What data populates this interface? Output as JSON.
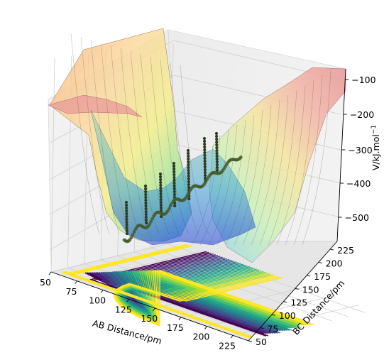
{
  "chart_data": {
    "type": "surface3d",
    "title": "",
    "xlabel": "AB Distance/pm",
    "ylabel": "BC Distance/pm",
    "zlabel": "V/kJ.mol",
    "zlabel_exponent": "−1",
    "xticks": [
      "50",
      "75",
      "100",
      "125",
      "150",
      "175",
      "200",
      "225"
    ],
    "yticks": [
      "50",
      "75",
      "100",
      "125",
      "150",
      "175",
      "200",
      "225"
    ],
    "zticks": [
      "−100",
      "−200",
      "−300",
      "−400",
      "−500"
    ],
    "xlim": [
      50,
      240
    ],
    "ylim": [
      50,
      240
    ],
    "zlim": [
      -560,
      -60
    ],
    "surface_colormap": "jet",
    "contour_colormap": "viridis",
    "trajectory_color": "#2f3b22",
    "grid": true
  }
}
